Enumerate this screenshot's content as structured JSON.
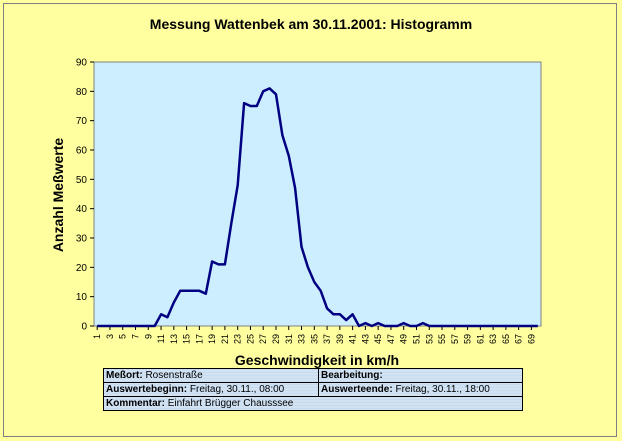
{
  "title": "Messung Wattenbek am 30.11.2001:  Histogramm",
  "colors": {
    "plot_bg": "#cceeff",
    "line": "#000080",
    "page_bg": "#ffffa0"
  },
  "chart_data": {
    "type": "line",
    "title": "Messung Wattenbek am 30.11.2001:  Histogramm",
    "xlabel": "Geschwindigkeit in km/h",
    "ylabel": "Anzahl Meßwerte",
    "xlim": [
      1,
      70
    ],
    "ylim": [
      0,
      90
    ],
    "yticks": [
      0,
      10,
      20,
      30,
      40,
      50,
      60,
      70,
      80,
      90
    ],
    "xticks": [
      1,
      3,
      5,
      7,
      9,
      11,
      13,
      15,
      17,
      19,
      21,
      23,
      25,
      27,
      29,
      31,
      33,
      35,
      37,
      39,
      41,
      43,
      45,
      47,
      49,
      51,
      53,
      55,
      57,
      59,
      61,
      63,
      65,
      67,
      69
    ],
    "grid": false,
    "x": [
      1,
      2,
      3,
      4,
      5,
      6,
      7,
      8,
      9,
      10,
      11,
      12,
      13,
      14,
      15,
      16,
      17,
      18,
      19,
      20,
      21,
      22,
      23,
      24,
      25,
      26,
      27,
      28,
      29,
      30,
      31,
      32,
      33,
      34,
      35,
      36,
      37,
      38,
      39,
      40,
      41,
      42,
      43,
      44,
      45,
      46,
      47,
      48,
      49,
      50,
      51,
      52,
      53,
      54,
      55,
      56,
      57,
      58,
      59,
      60,
      61,
      62,
      63,
      64,
      65,
      66,
      67,
      68,
      69,
      70
    ],
    "values": [
      0,
      0,
      0,
      0,
      0,
      0,
      0,
      0,
      0,
      0,
      4,
      3,
      8,
      12,
      12,
      12,
      12,
      11,
      22,
      21,
      21,
      35,
      48,
      76,
      75,
      75,
      80,
      81,
      79,
      65,
      58,
      47,
      27,
      20,
      15,
      12,
      6,
      4,
      4,
      2,
      4,
      0,
      1,
      0,
      1,
      0,
      0,
      0,
      1,
      0,
      0,
      1,
      0,
      0,
      0,
      0,
      0,
      0,
      0,
      0,
      0,
      0,
      0,
      0,
      0,
      0,
      0,
      0,
      0,
      0
    ]
  },
  "info": {
    "messort_label": "Meßort:",
    "messort_value": "Rosenstraße",
    "bearbeitung_label": "Bearbeitung:",
    "bearbeitung_value": "",
    "beginn_label": "Auswertebeginn:",
    "beginn_value": "Freitag, 30.11., 08:00",
    "ende_label": "Auswerteende:",
    "ende_value": "Freitag, 30.11., 18:00",
    "kommentar_label": "Kommentar:",
    "kommentar_value": "Einfahrt Brügger Chausssee"
  }
}
